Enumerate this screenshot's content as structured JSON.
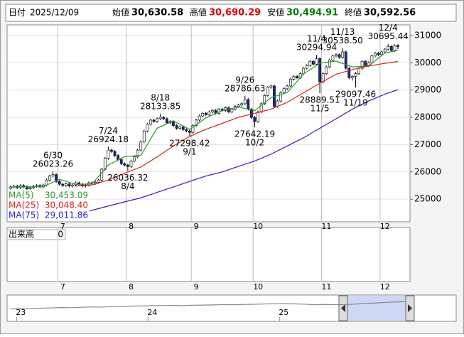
{
  "header": {
    "date_label": "日付",
    "date": "2025/12/09",
    "items": [
      {
        "name": "始値",
        "value": "30,630.58",
        "color": "#000000"
      },
      {
        "name": "高値",
        "value": "30,690.29",
        "color": "#e00000"
      },
      {
        "name": "安値",
        "value": "30,494.91",
        "color": "#008000"
      },
      {
        "name": "終値",
        "value": "30,592.56",
        "color": "#000000"
      }
    ]
  },
  "chart_data": {
    "type": "candlestick",
    "ylim": [
      24170,
      31390
    ],
    "yticks": [
      25000,
      26000,
      27000,
      28000,
      29000,
      30000,
      31000
    ],
    "grid": true,
    "xticks": [
      {
        "value": 15,
        "label": "7"
      },
      {
        "value": 36,
        "label": "8"
      },
      {
        "value": 56,
        "label": "9"
      },
      {
        "value": 75,
        "label": "10"
      },
      {
        "value": 96,
        "label": "11"
      },
      {
        "value": 114,
        "label": "12"
      }
    ],
    "up_color": "#ffffff",
    "down_color": "#1c2c8c",
    "wick_color": "#000000",
    "ohlc": [
      [
        25400,
        25500,
        25350,
        25450
      ],
      [
        25450,
        25530,
        25400,
        25480
      ],
      [
        25480,
        25530,
        25370,
        25420
      ],
      [
        25420,
        25550,
        25370,
        25500
      ],
      [
        25500,
        25550,
        25410,
        25460
      ],
      [
        25460,
        25510,
        25330,
        25380
      ],
      [
        25380,
        25470,
        25330,
        25420
      ],
      [
        25420,
        25520,
        25370,
        25470
      ],
      [
        25470,
        25550,
        25420,
        25500
      ],
      [
        25500,
        25550,
        25400,
        25450
      ],
      [
        25450,
        25570,
        25400,
        25520
      ],
      [
        25520,
        25750,
        25470,
        25700
      ],
      [
        25700,
        25900,
        25650,
        25850
      ],
      [
        25850,
        26023.26,
        25800,
        25900
      ],
      [
        25900,
        25950,
        25600,
        25650
      ],
      [
        25650,
        25700,
        25500,
        25550
      ],
      [
        25550,
        25600,
        25450,
        25500
      ],
      [
        25500,
        25610,
        25450,
        25560
      ],
      [
        25560,
        25610,
        25430,
        25480
      ],
      [
        25480,
        25570,
        25430,
        25520
      ],
      [
        25520,
        25650,
        25470,
        25600
      ],
      [
        25600,
        25650,
        25500,
        25550
      ],
      [
        25550,
        25600,
        25430,
        25480
      ],
      [
        25480,
        25570,
        25430,
        25520
      ],
      [
        25520,
        25650,
        25470,
        25600
      ],
      [
        25600,
        25650,
        25530,
        25580
      ],
      [
        25580,
        25670,
        25530,
        25620
      ],
      [
        25620,
        25750,
        25570,
        25700
      ],
      [
        25700,
        26150,
        25650,
        26100
      ],
      [
        26100,
        26550,
        26050,
        26500
      ],
      [
        26500,
        26924.18,
        26450,
        26800
      ],
      [
        26800,
        26850,
        26700,
        26750
      ],
      [
        26750,
        26800,
        26550,
        26600
      ],
      [
        26600,
        26650,
        26400,
        26450
      ],
      [
        26450,
        26500,
        26250,
        26300
      ],
      [
        26300,
        26350,
        26200,
        26250
      ],
      [
        26250,
        26300,
        26036.32,
        26200
      ],
      [
        26200,
        26450,
        26150,
        26400
      ],
      [
        26400,
        26600,
        26350,
        26550
      ],
      [
        26550,
        26850,
        26500,
        26800
      ],
      [
        26800,
        27150,
        26750,
        27100
      ],
      [
        27100,
        27550,
        27050,
        27500
      ],
      [
        27500,
        27800,
        27450,
        27750
      ],
      [
        27750,
        27950,
        27700,
        27900
      ],
      [
        27900,
        27950,
        27800,
        27850
      ],
      [
        27850,
        28000,
        27800,
        27950
      ],
      [
        27950,
        28133.85,
        27900,
        28000
      ],
      [
        28000,
        28050,
        27900,
        27950
      ],
      [
        27950,
        28000,
        27750,
        27800
      ],
      [
        27800,
        27900,
        27750,
        27850
      ],
      [
        27850,
        27900,
        27650,
        27700
      ],
      [
        27700,
        27750,
        27550,
        27600
      ],
      [
        27600,
        27700,
        27550,
        27650
      ],
      [
        27650,
        27700,
        27500,
        27550
      ],
      [
        27550,
        27600,
        27450,
        27500
      ],
      [
        27500,
        27550,
        27298.42,
        27450
      ],
      [
        27450,
        27750,
        27400,
        27700
      ],
      [
        27700,
        27950,
        27650,
        27900
      ],
      [
        27900,
        28100,
        27850,
        28050
      ],
      [
        28050,
        28200,
        28000,
        28150
      ],
      [
        28150,
        28200,
        28050,
        28100
      ],
      [
        28100,
        28250,
        28050,
        28200
      ],
      [
        28200,
        28300,
        28150,
        28250
      ],
      [
        28250,
        28300,
        28100,
        28150
      ],
      [
        28150,
        28350,
        28100,
        28300
      ],
      [
        28300,
        28350,
        28200,
        28250
      ],
      [
        28250,
        28400,
        28200,
        28350
      ],
      [
        28350,
        28400,
        28150,
        28200
      ],
      [
        28200,
        28350,
        28150,
        28300
      ],
      [
        28300,
        28450,
        28250,
        28400
      ],
      [
        28400,
        28500,
        28350,
        28450
      ],
      [
        28450,
        28550,
        28400,
        28500
      ],
      [
        28500,
        28786.63,
        28450,
        28650
      ],
      [
        28650,
        28700,
        28250,
        28300
      ],
      [
        28300,
        28350,
        27950,
        28000
      ],
      [
        28000,
        28050,
        27642.19,
        27850
      ],
      [
        27850,
        28250,
        27800,
        28200
      ],
      [
        28200,
        28550,
        28150,
        28500
      ],
      [
        28500,
        28850,
        28450,
        28800
      ],
      [
        28800,
        29150,
        28750,
        29100
      ],
      [
        29100,
        29200,
        29050,
        29150
      ],
      [
        29150,
        29200,
        28350,
        28400
      ],
      [
        28400,
        28650,
        28350,
        28600
      ],
      [
        28600,
        28950,
        28550,
        28900
      ],
      [
        28900,
        29100,
        28850,
        29050
      ],
      [
        29050,
        29200,
        29000,
        29150
      ],
      [
        29150,
        29450,
        29100,
        29400
      ],
      [
        29400,
        29550,
        29350,
        29500
      ],
      [
        29500,
        29550,
        29400,
        29450
      ],
      [
        29450,
        29650,
        29400,
        29600
      ],
      [
        29600,
        29850,
        29550,
        29800
      ],
      [
        29800,
        29950,
        29750,
        29900
      ],
      [
        29900,
        30100,
        29850,
        30050
      ],
      [
        30050,
        30100,
        29900,
        29950
      ],
      [
        29950,
        30294.94,
        29900,
        30150
      ],
      [
        30150,
        30200,
        28889.51,
        29300
      ],
      [
        29300,
        29650,
        29250,
        29600
      ],
      [
        29600,
        29900,
        29550,
        29850
      ],
      [
        29850,
        30150,
        29800,
        30100
      ],
      [
        30100,
        30300,
        30050,
        30250
      ],
      [
        30250,
        30350,
        30200,
        30300
      ],
      [
        30300,
        30350,
        30150,
        30200
      ],
      [
        30200,
        30538.5,
        30150,
        30400
      ],
      [
        30400,
        30450,
        29750,
        29800
      ],
      [
        29800,
        29850,
        29400,
        29450
      ],
      [
        29450,
        29550,
        29350,
        29500
      ],
      [
        29500,
        29650,
        29097.46,
        29600
      ],
      [
        29600,
        29850,
        29550,
        29800
      ],
      [
        29800,
        30100,
        29750,
        30050
      ],
      [
        30050,
        30100,
        29850,
        29900
      ],
      [
        29900,
        30050,
        29850,
        30000
      ],
      [
        30000,
        30300,
        29950,
        30250
      ],
      [
        30250,
        30400,
        30200,
        30350
      ],
      [
        30350,
        30400,
        30250,
        30300
      ],
      [
        30300,
        30450,
        30250,
        30400
      ],
      [
        30400,
        30550,
        30350,
        30500
      ],
      [
        30500,
        30695.44,
        30450,
        30600
      ],
      [
        30600,
        30650,
        30400,
        30450
      ],
      [
        30450,
        30680,
        30400,
        30630
      ],
      [
        30630.58,
        30690.29,
        30494.91,
        30592.56
      ]
    ],
    "series": [
      {
        "name": "MA(5)",
        "color": "#2a9a2a",
        "x": [
          0,
          5,
          10,
          15,
          20,
          25,
          30,
          35,
          40,
          45,
          50,
          55,
          60,
          65,
          70,
          75,
          80,
          85,
          90,
          95,
          100,
          105,
          110,
          115,
          119
        ],
        "values": [
          25440,
          25450,
          25460,
          25730,
          25540,
          25560,
          26250,
          26560,
          26610,
          27600,
          27870,
          27560,
          27980,
          28250,
          28380,
          28240,
          28720,
          28910,
          29590,
          29990,
          30060,
          29850,
          29880,
          30360,
          30453.09
        ],
        "value_labels": [
          null,
          null,
          null,
          null,
          null,
          null,
          null,
          null,
          null,
          null,
          null,
          null,
          null,
          null,
          null,
          null,
          null,
          null,
          null,
          null,
          null,
          null,
          null,
          null,
          "30,453.09"
        ]
      },
      {
        "name": "MA(25)",
        "color": "#e02020",
        "x": [
          20,
          25,
          30,
          35,
          40,
          45,
          50,
          55,
          60,
          65,
          70,
          75,
          80,
          85,
          90,
          95,
          100,
          105,
          110,
          115,
          119
        ],
        "values": [
          25480,
          25520,
          25700,
          25950,
          26180,
          26550,
          26950,
          27300,
          27560,
          27780,
          28000,
          28150,
          28300,
          28550,
          28900,
          29250,
          29580,
          29750,
          29880,
          29980,
          30048.4
        ],
        "value_labels": [
          null,
          null,
          null,
          null,
          null,
          null,
          null,
          null,
          null,
          null,
          null,
          null,
          null,
          null,
          null,
          null,
          null,
          null,
          null,
          null,
          "30,048.40"
        ]
      },
      {
        "name": "MA(75)",
        "color": "#2020e0",
        "x": [
          24,
          30,
          35,
          40,
          45,
          50,
          55,
          60,
          65,
          70,
          75,
          80,
          85,
          90,
          95,
          100,
          105,
          110,
          115,
          119
        ],
        "values": [
          24560,
          24750,
          24900,
          25050,
          25250,
          25450,
          25650,
          25850,
          26000,
          26200,
          26400,
          26650,
          26950,
          27250,
          27600,
          27950,
          28300,
          28600,
          28850,
          29011.86
        ],
        "value_labels": [
          null,
          null,
          null,
          null,
          null,
          null,
          null,
          null,
          null,
          null,
          null,
          null,
          null,
          null,
          null,
          null,
          null,
          null,
          null,
          "29,011.86"
        ]
      }
    ],
    "annotations": [
      {
        "date": "6/30",
        "value": 26023.26
      },
      {
        "date": "7/24",
        "value": 26924.18
      },
      {
        "date": "8/4",
        "value": 26036.32
      },
      {
        "date": "8/18",
        "value": 28133.85
      },
      {
        "date": "9/1",
        "value": 27298.42
      },
      {
        "date": "9/26",
        "value": 28786.63
      },
      {
        "date": "10/2",
        "value": 27642.19
      },
      {
        "date": "11/4",
        "value": 30294.94
      },
      {
        "date": "11/5",
        "value": 28889.51
      },
      {
        "date": "11/13",
        "value": {
          "value": 30538.5,
          "label": "30538.50"
        }
      },
      {
        "date": "11/19",
        "value": 29097.46
      },
      {
        "date": "12/4",
        "value": 30695.44
      }
    ]
  },
  "volume": {
    "label": "出来高",
    "value": 0
  },
  "navigator": {
    "ylim": [
      0,
      40000
    ],
    "values": [
      19000,
      19500,
      19200,
      20000,
      20500,
      21000,
      20800,
      21500,
      22000,
      21800,
      22500,
      23000,
      23300,
      23800,
      24000,
      24200,
      24500,
      24100,
      24800,
      25000,
      25300,
      25800,
      25600,
      26000,
      26300,
      26800,
      27200,
      27500,
      27000,
      26500,
      25500,
      26000,
      25800,
      25600,
      26500,
      27800,
      28300,
      29200,
      30000,
      30600
    ],
    "xticks": [
      {
        "value": 1,
        "label": "23"
      },
      {
        "value": 14,
        "label": "24"
      },
      {
        "value": 27,
        "label": "25"
      }
    ]
  }
}
